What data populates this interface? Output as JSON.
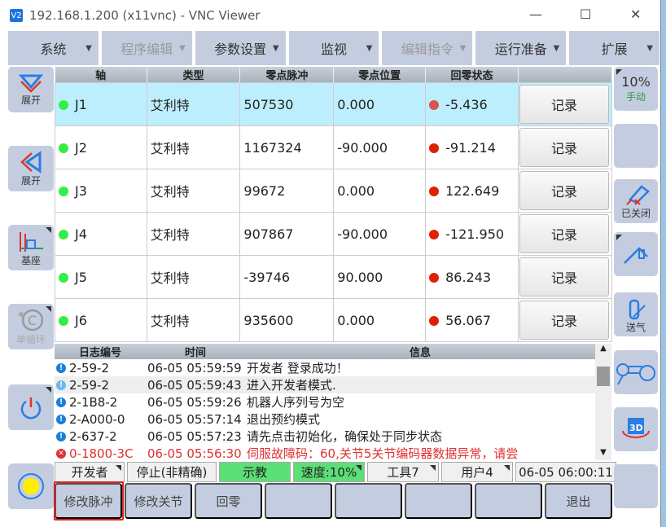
{
  "window": {
    "title": "192.168.1.200 (x11vnc) - VNC Viewer",
    "logo": "V2"
  },
  "menu": [
    {
      "label": "系统",
      "disabled": false
    },
    {
      "label": "程序编辑",
      "disabled": true
    },
    {
      "label": "参数设置",
      "disabled": false
    },
    {
      "label": "监视",
      "disabled": false
    },
    {
      "label": "编辑指令",
      "disabled": true
    },
    {
      "label": "运行准备",
      "disabled": false
    },
    {
      "label": "扩展",
      "disabled": false
    }
  ],
  "left": [
    {
      "label": "展开",
      "icon": "expand-down-icon"
    },
    {
      "label": "展开",
      "icon": "expand-left-icon"
    },
    {
      "label": "基座",
      "icon": "base-coordinate-icon"
    },
    {
      "label": "单循环",
      "icon": "single-cycle-icon"
    },
    {
      "label": "",
      "icon": "power-icon"
    },
    {
      "label": "",
      "icon": "status-light-icon",
      "color": "#ffee00"
    }
  ],
  "right": {
    "speed": "10%",
    "mode": "手动",
    "torch": "已关闭",
    "gas": "送气"
  },
  "joint_table": {
    "headers": [
      "轴",
      "类型",
      "零点脉冲",
      "零点位置",
      "回零状态",
      ""
    ],
    "rows": [
      {
        "axis": "J1",
        "type": "艾利特",
        "pulse": "507530",
        "pos": "0.000",
        "status": "-5.436",
        "status_color": "#d9534f",
        "button": "记录"
      },
      {
        "axis": "J2",
        "type": "艾利特",
        "pulse": "1167324",
        "pos": "-90.000",
        "status": "-91.214",
        "status_color": "#dd2200",
        "button": "记录"
      },
      {
        "axis": "J3",
        "type": "艾利特",
        "pulse": "99672",
        "pos": "0.000",
        "status": "122.649",
        "status_color": "#dd2200",
        "button": "记录"
      },
      {
        "axis": "J4",
        "type": "艾利特",
        "pulse": "907867",
        "pos": "-90.000",
        "status": "-121.950",
        "status_color": "#dd2200",
        "button": "记录"
      },
      {
        "axis": "J5",
        "type": "艾利特",
        "pulse": "-39746",
        "pos": "90.000",
        "status": "86.243",
        "status_color": "#dd2200",
        "button": "记录"
      },
      {
        "axis": "J6",
        "type": "艾利特",
        "pulse": "935600",
        "pos": "0.000",
        "status": "56.067",
        "status_color": "#dd2200",
        "button": "记录"
      }
    ]
  },
  "log": {
    "headers": [
      "日志编号",
      "时间",
      "信息"
    ],
    "rows": [
      {
        "id": "2-59-2",
        "time": "06-05 05:59:59",
        "msg": "开发者 登录成功！",
        "level": "info"
      },
      {
        "id": "2-59-2",
        "time": "06-05 05:59:43",
        "msg": "进入开发者模式.",
        "level": "info"
      },
      {
        "id": "2-1B8-2",
        "time": "06-05 05:59:26",
        "msg": "机器人序列号为空",
        "level": "info"
      },
      {
        "id": "2-A000-0",
        "time": "06-05 05:57:14",
        "msg": "退出预约模式",
        "level": "info"
      },
      {
        "id": "2-637-2",
        "time": "06-05 05:57:23",
        "msg": "请先点击初始化，确保处于同步状态",
        "level": "info"
      },
      {
        "id": "0-1800-3C",
        "time": "06-05 05:56:30",
        "msg": "伺服故障码：60,关节5关节编码器数据异常，请尝",
        "level": "error"
      }
    ]
  },
  "status": [
    "开发者",
    "停止(非精确)",
    "示教",
    "速度:10%",
    "工具7",
    "用户4",
    "06-05 06:00:11"
  ],
  "bottom": [
    "修改脉冲",
    "修改关节",
    "回零",
    "",
    "",
    "",
    "",
    "退出"
  ]
}
